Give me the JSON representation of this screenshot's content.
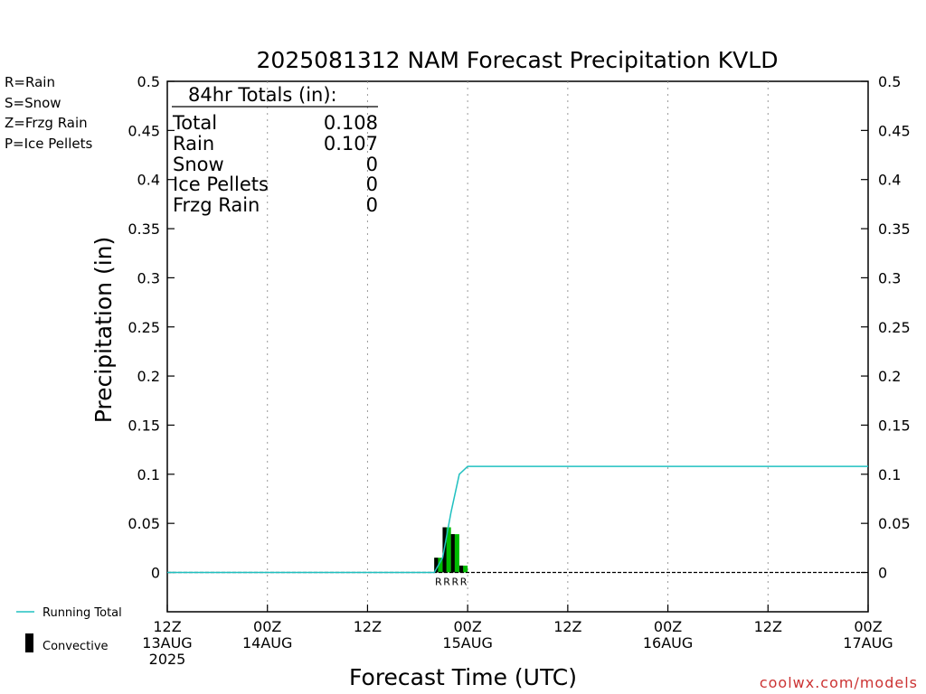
{
  "title": "2025081312 NAM Forecast Precipitation KVLD",
  "footer": "coolwx.com/models",
  "precip_legend": [
    {
      "text": "R=Rain",
      "color": "#22cc22"
    },
    {
      "text": "S=Snow",
      "color": "#3344dd"
    },
    {
      "text": "Z=Frzg Rain",
      "color": "#ee8833"
    },
    {
      "text": "P=Ice Pellets",
      "color": "#dd2299"
    }
  ],
  "bottom_legend": {
    "running_total": "Running Total",
    "convective": "Convective",
    "running_total_color": "#20c0c0",
    "convective_color": "#000000"
  },
  "totals_box": {
    "header": "84hr Totals (in):",
    "rows": [
      {
        "label": "Total",
        "value": "0.108"
      },
      {
        "label": "Rain",
        "value": "0.107"
      },
      {
        "label": "Snow",
        "value": "0"
      },
      {
        "label": "Ice Pellets",
        "value": "0"
      },
      {
        "label": "Frzg Rain",
        "value": "0"
      }
    ]
  },
  "chart_data": {
    "type": "bar",
    "title": "2025081312 NAM Forecast Precipitation KVLD",
    "xlabel": "Forecast Time (UTC)",
    "ylabel": "Precipitation (in)",
    "ylim": [
      -0.04,
      0.5
    ],
    "xlim": [
      0,
      84
    ],
    "x_unit": "forecast hour",
    "grid": "vertical dotted",
    "y_ticks": [
      0,
      0.05,
      0.1,
      0.15,
      0.2,
      0.25,
      0.3,
      0.35,
      0.4,
      0.45,
      0.5
    ],
    "y_tick_labels": [
      "0",
      "0.05",
      "0.1",
      "0.15",
      "0.2",
      "0.25",
      "0.3",
      "0.35",
      "0.4",
      "0.45",
      "0.5"
    ],
    "x_ticks": [
      {
        "x": 0,
        "lines": [
          "12Z",
          "13AUG",
          "2025"
        ]
      },
      {
        "x": 12,
        "lines": [
          "00Z",
          "14AUG"
        ]
      },
      {
        "x": 24,
        "lines": [
          "12Z"
        ]
      },
      {
        "x": 36,
        "lines": [
          "00Z",
          "15AUG"
        ]
      },
      {
        "x": 48,
        "lines": [
          "12Z"
        ]
      },
      {
        "x": 60,
        "lines": [
          "00Z",
          "16AUG"
        ]
      },
      {
        "x": 72,
        "lines": [
          "12Z"
        ]
      },
      {
        "x": 84,
        "lines": [
          "00Z",
          "17AUG"
        ]
      }
    ],
    "series": [
      {
        "name": "Rain",
        "color": "#00bb00",
        "x": [
          33,
          34,
          35,
          36
        ],
        "values": [
          0.015,
          0.046,
          0.039,
          0.007
        ],
        "type_labels": [
          "R",
          "R",
          "R",
          "R"
        ]
      },
      {
        "name": "Convective",
        "color": "#000000",
        "x": [
          33,
          34,
          35,
          36
        ],
        "values": [
          0.015,
          0.046,
          0.039,
          0.007
        ]
      },
      {
        "name": "Running Total",
        "type": "line",
        "color": "#20c0c0",
        "x": [
          0,
          32,
          33,
          34,
          35,
          36,
          84
        ],
        "values": [
          0,
          0,
          0.015,
          0.061,
          0.1,
          0.108,
          0.108
        ]
      }
    ]
  }
}
